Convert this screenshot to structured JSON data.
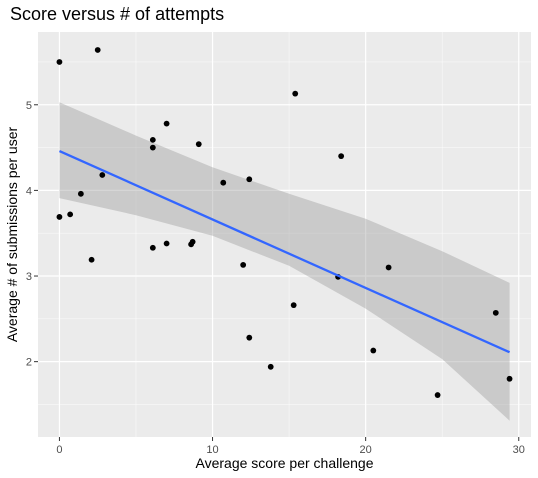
{
  "chart_data": {
    "type": "scatter",
    "title": "Score versus # of attempts",
    "xlabel": "Average score per challenge",
    "ylabel": "Average # of submissions per user",
    "xlim": [
      -1.4,
      30.8
    ],
    "ylim": [
      1.12,
      5.85
    ],
    "xticks": [
      0,
      10,
      20,
      30
    ],
    "xtick_labels": [
      "0",
      "10",
      "20",
      "30"
    ],
    "yticks": [
      2,
      3,
      4,
      5
    ],
    "ytick_labels": [
      "2",
      "3",
      "4",
      "5"
    ],
    "grid": true,
    "legend": "none",
    "points": [
      {
        "x": 0.0,
        "y": 5.5
      },
      {
        "x": 2.5,
        "y": 5.64
      },
      {
        "x": 0.0,
        "y": 3.69
      },
      {
        "x": 0.7,
        "y": 3.72
      },
      {
        "x": 1.4,
        "y": 3.96
      },
      {
        "x": 2.8,
        "y": 4.18
      },
      {
        "x": 2.1,
        "y": 3.19
      },
      {
        "x": 6.1,
        "y": 4.59
      },
      {
        "x": 6.1,
        "y": 4.5
      },
      {
        "x": 7.0,
        "y": 4.78
      },
      {
        "x": 9.1,
        "y": 4.54
      },
      {
        "x": 6.1,
        "y": 3.33
      },
      {
        "x": 7.0,
        "y": 3.38
      },
      {
        "x": 8.6,
        "y": 3.37
      },
      {
        "x": 8.7,
        "y": 3.4
      },
      {
        "x": 10.7,
        "y": 4.09
      },
      {
        "x": 12.4,
        "y": 4.13
      },
      {
        "x": 12.0,
        "y": 3.13
      },
      {
        "x": 12.4,
        "y": 2.28
      },
      {
        "x": 13.8,
        "y": 1.94
      },
      {
        "x": 15.4,
        "y": 5.13
      },
      {
        "x": 15.3,
        "y": 2.66
      },
      {
        "x": 18.2,
        "y": 2.99
      },
      {
        "x": 18.4,
        "y": 4.4
      },
      {
        "x": 20.5,
        "y": 2.13
      },
      {
        "x": 21.5,
        "y": 3.1
      },
      {
        "x": 24.7,
        "y": 1.61
      },
      {
        "x": 28.5,
        "y": 2.57
      },
      {
        "x": 29.4,
        "y": 1.8
      }
    ],
    "trend_line": {
      "type": "linear",
      "color": "#3366ff",
      "x": [
        0,
        29.4
      ],
      "y": [
        4.46,
        2.11
      ]
    },
    "confidence_band": {
      "color": "#999999",
      "x": [
        0,
        5,
        10,
        15,
        20,
        25,
        29.4
      ],
      "lower": [
        3.91,
        3.71,
        3.47,
        3.12,
        2.62,
        2.03,
        1.31
      ],
      "upper": [
        5.03,
        4.64,
        4.27,
        3.96,
        3.67,
        3.29,
        2.92
      ]
    },
    "colors": {
      "panel": "#ebebeb",
      "grid_major": "#ffffff",
      "point": "#000000"
    }
  }
}
